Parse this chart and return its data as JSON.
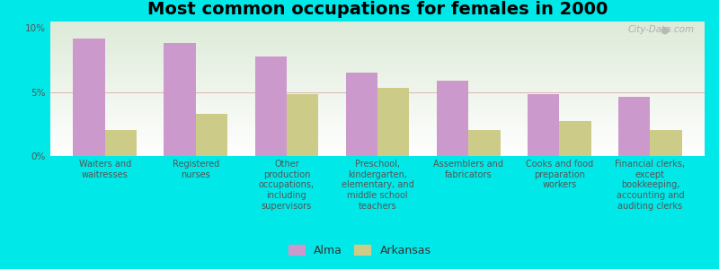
{
  "title": "Most common occupations for females in 2000",
  "background_color": "#00e8e8",
  "plot_bg_top": "#e8f0d8",
  "plot_bg_bottom": "#f5f8ee",
  "categories": [
    "Waiters and\nwaitresses",
    "Registered\nnurses",
    "Other\nproduction\noccupations,\nincluding\nsupervisors",
    "Preschool,\nkindergarten,\nelementary, and\nmiddle school\nteachers",
    "Assemblers and\nfabricators",
    "Cooks and food\npreparation\nworkers",
    "Financial clerks,\nexcept\nbookkeeping,\naccounting and\nauditing clerks"
  ],
  "alma_values": [
    9.2,
    8.8,
    7.8,
    6.5,
    5.9,
    4.8,
    4.6
  ],
  "arkansas_values": [
    2.0,
    3.3,
    4.8,
    5.3,
    2.0,
    2.7,
    2.0
  ],
  "alma_color": "#cc99cc",
  "arkansas_color": "#cccc88",
  "ylim": [
    0,
    10.5
  ],
  "yticks": [
    0,
    5,
    10
  ],
  "ytick_labels": [
    "0%",
    "5%",
    "10%"
  ],
  "bar_width": 0.35,
  "legend_alma": "Alma",
  "legend_arkansas": "Arkansas",
  "title_fontsize": 14,
  "tick_fontsize": 7,
  "legend_fontsize": 9
}
